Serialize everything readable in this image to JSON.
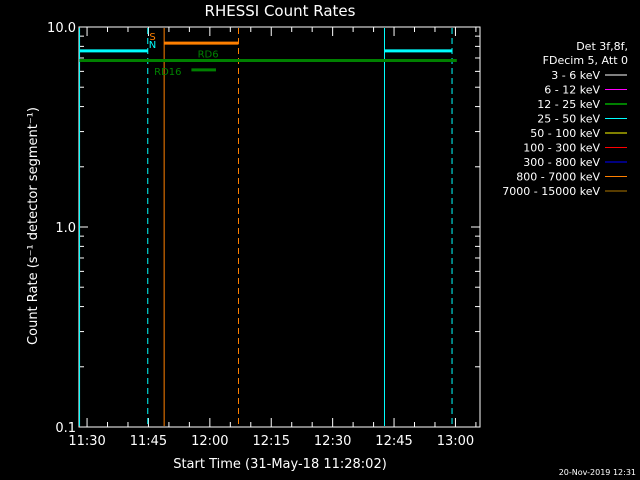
{
  "chart_data": {
    "type": "line",
    "title": "RHESSI Count Rates",
    "xlabel": "Start Time (31-May-18 11:28:02)",
    "ylabel": "Count Rate (s⁻¹ detector segment⁻¹)",
    "y_scale": "log",
    "ylim": [
      0.1,
      10.0
    ],
    "xlim": [
      "11:28:02",
      "13:06:00"
    ],
    "x_ticks": [
      "11:30",
      "11:45",
      "12:00",
      "12:15",
      "12:30",
      "12:45",
      "13:00"
    ],
    "y_ticks": [
      "10.0",
      "1.0",
      "0.1"
    ],
    "legend_header": [
      "Det 3f,8f,",
      "FDecim 5, Att 0"
    ],
    "legend_placement": "right",
    "series": [
      {
        "name": "3 - 6 keV",
        "color": "#ffffff"
      },
      {
        "name": "6 - 12 keV",
        "color": "#ff00ff"
      },
      {
        "name": "12 - 25 keV",
        "color": "#00ff00"
      },
      {
        "name": "25 - 50 keV",
        "color": "#00ffff"
      },
      {
        "name": "50 - 100 keV",
        "color": "#ffff00"
      },
      {
        "name": "100 - 300 keV",
        "color": "#ff0000"
      },
      {
        "name": "300 - 800 keV",
        "color": "#0000ff"
      },
      {
        "name": "800 - 7000 keV",
        "color": "#ff8000"
      },
      {
        "name": "7000 - 15000 keV",
        "color": "#b07800"
      }
    ],
    "vertical_lines": [
      {
        "x": "11:28:10",
        "color": "#00ffff",
        "style": "solid"
      },
      {
        "x": "11:44:50",
        "color": "#00ffff",
        "style": "dashed"
      },
      {
        "x": "11:48:50",
        "color": "#ff8000",
        "style": "solid"
      },
      {
        "x": "12:07:00",
        "color": "#ff8000",
        "style": "dashed"
      },
      {
        "x": "12:42:40",
        "color": "#00ffff",
        "style": "solid"
      },
      {
        "x": "12:59:10",
        "color": "#00ffff",
        "style": "dashed"
      }
    ],
    "segments": [
      {
        "label": "N",
        "color": "#00ffff",
        "x0": "11:28:10",
        "x1": "11:44:50",
        "y": 7.6,
        "label_x": "11:46:00"
      },
      {
        "label": "",
        "color": "#00ffff",
        "x0": "12:42:40",
        "x1": "12:59:10",
        "y": 7.6
      },
      {
        "label": "S",
        "color": "#ff8000",
        "x0": "11:48:50",
        "x1": "12:07:00",
        "y": 8.3,
        "label_x": "11:46:00"
      },
      {
        "label": "RD6",
        "color": "#008000",
        "x0": "11:28:10",
        "x1": "13:00:20",
        "y": 6.8,
        "label_x": "11:57:00"
      },
      {
        "label": "RD16",
        "color": "#008000",
        "x0": "11:55:30",
        "x1": "12:01:30",
        "y": 6.1,
        "label_x": "11:46:00"
      }
    ],
    "timestamp": "20-Nov-2019 12:31"
  }
}
